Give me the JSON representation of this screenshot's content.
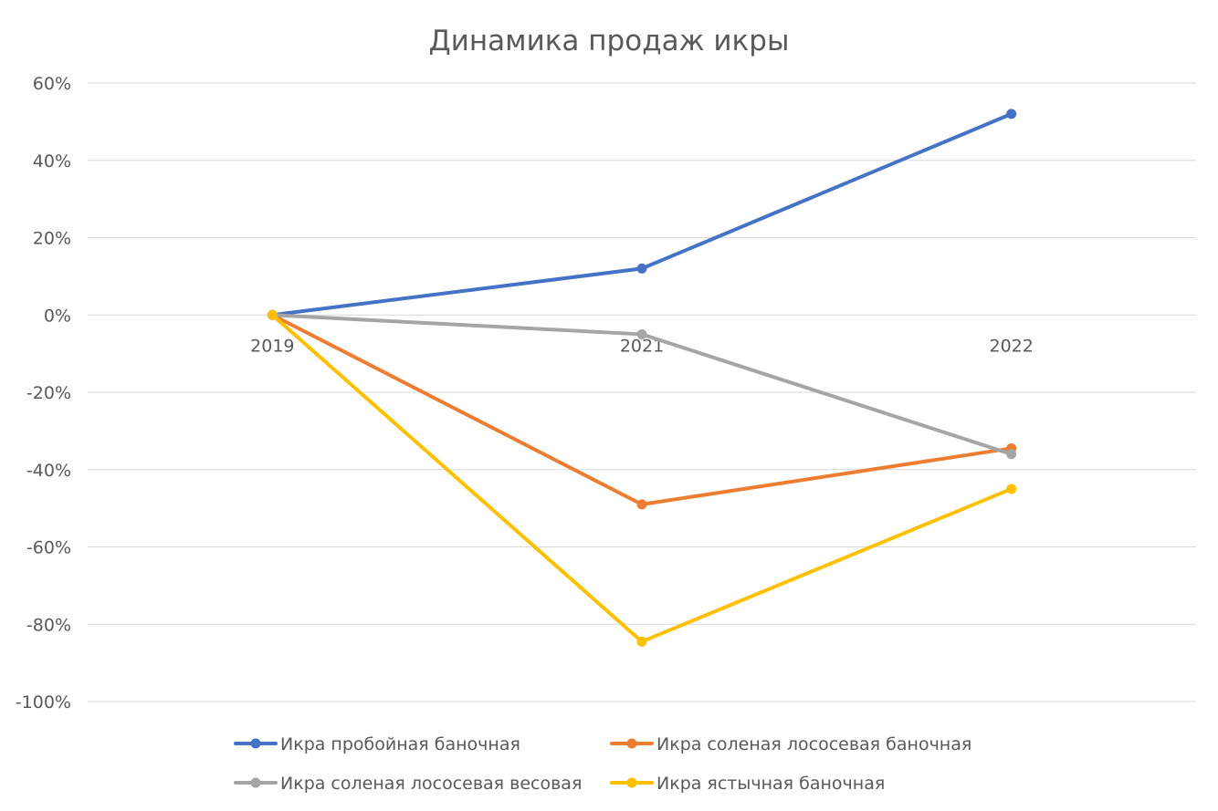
{
  "chart_data": {
    "type": "line",
    "title": "Динамика продаж икры",
    "xlabel": "",
    "ylabel": "",
    "categories": [
      "2019",
      "2021",
      "2022"
    ],
    "ylim": [
      -100,
      60
    ],
    "ytick_step": 20,
    "y_format": "percent",
    "grid": true,
    "legend_position": "bottom",
    "series": [
      {
        "name": "Икра пробойная баночная",
        "values": [
          0,
          12,
          52
        ],
        "color": "#4472C4"
      },
      {
        "name": "Икра соленая лососевая баночная",
        "values": [
          0,
          -49,
          -34.5
        ],
        "color": "#ED7D31"
      },
      {
        "name": "Икра соленая лососевая весовая",
        "values": [
          0,
          -5,
          -36
        ],
        "color": "#A5A5A5"
      },
      {
        "name": "Икра ястычная баночная",
        "values": [
          0,
          -84.5,
          -45
        ],
        "color": "#FFC000"
      }
    ]
  }
}
